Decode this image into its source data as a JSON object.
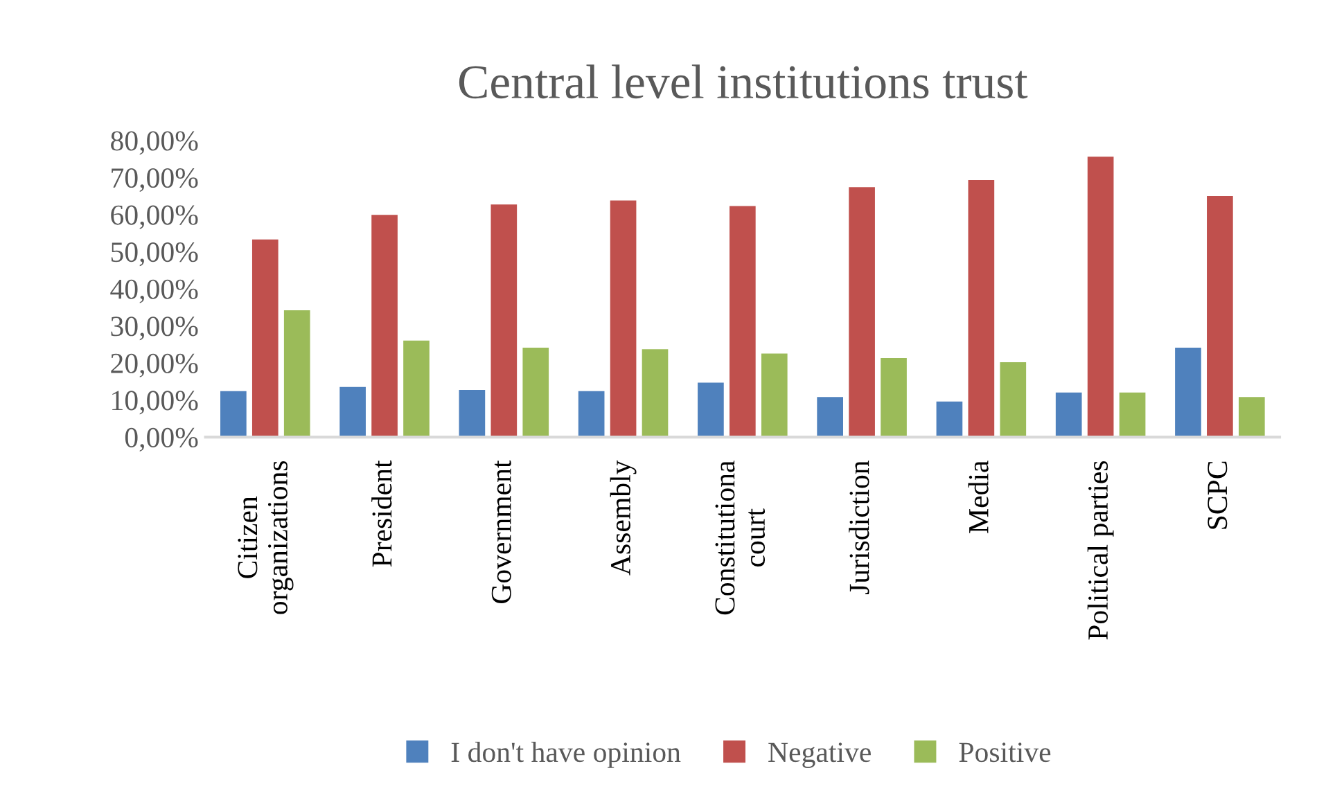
{
  "chart_data": {
    "type": "bar",
    "title": "Central level institutions trust",
    "categories": [
      "Citizen\norganizations",
      "President",
      "Government",
      "Assembly",
      "Constitutiona\ncourt",
      "Jurisdiction",
      "Media",
      "Political parties",
      "SCPC"
    ],
    "series": [
      {
        "name": "I don't have opinion",
        "color": "#4f81bd",
        "values": [
          12.4,
          13.5,
          12.7,
          12.4,
          14.7,
          10.8,
          9.6,
          12.0,
          24.1
        ]
      },
      {
        "name": "Negative",
        "color": "#c0504d",
        "values": [
          53.3,
          59.9,
          62.7,
          63.8,
          62.3,
          67.4,
          69.3,
          75.6,
          65.0
        ]
      },
      {
        "name": "Positive",
        "color": "#9bbb59",
        "values": [
          34.2,
          26.0,
          24.1,
          23.7,
          22.5,
          21.3,
          20.2,
          12.0,
          10.8
        ]
      }
    ],
    "ylim": [
      0,
      80
    ],
    "yticks": [
      {
        "value": 0,
        "label": "0,00%"
      },
      {
        "value": 10,
        "label": "10,00%"
      },
      {
        "value": 20,
        "label": "20,00%"
      },
      {
        "value": 30,
        "label": "30,00%"
      },
      {
        "value": 40,
        "label": "40,00%"
      },
      {
        "value": 50,
        "label": "50,00%"
      },
      {
        "value": 60,
        "label": "60,00%"
      },
      {
        "value": 70,
        "label": "70,00%"
      },
      {
        "value": 80,
        "label": "80,00%"
      }
    ],
    "grid": false,
    "legend": "bottom"
  }
}
